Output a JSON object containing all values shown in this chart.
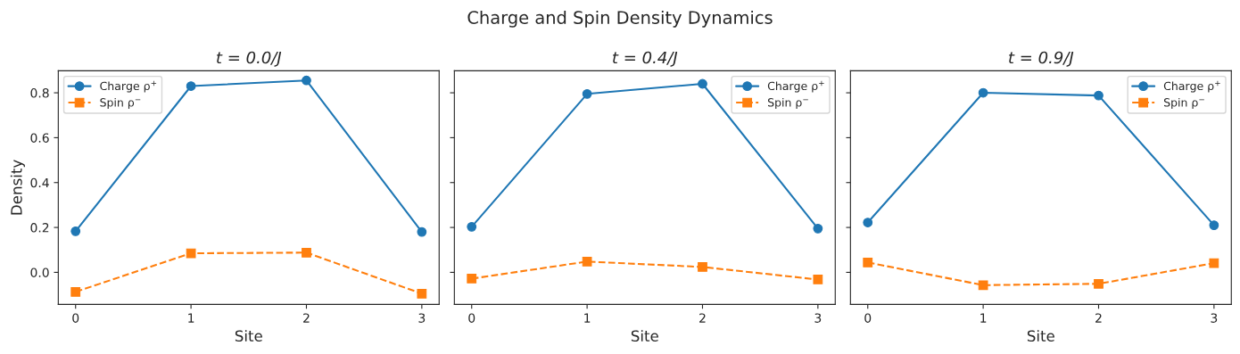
{
  "chart_data": [
    {
      "type": "line",
      "title": "t = 0.0/J",
      "annotations": [
        "Charge and Spin Density Dynamics"
      ],
      "xlabel": "Site",
      "ylabel": "Density",
      "x": [
        0,
        1,
        2,
        3
      ],
      "xlim": [
        -0.15,
        3.15
      ],
      "xticks": [
        0,
        1,
        2,
        3
      ],
      "ylim": [
        -0.143,
        0.898
      ],
      "yticks": [
        {
          "value": 0.0,
          "label": "0.0"
        },
        0.2,
        0.4,
        0.6,
        0.8
      ],
      "legend": "top left",
      "grid": false,
      "series": [
        {
          "name": "Charge ρ$^{+}$",
          "color": "#1f77b4",
          "marker": "circle",
          "line_style": "solid",
          "values": [
            0.183,
            0.83,
            0.855,
            0.18
          ]
        },
        {
          "name": "Spin ρ$^{−}$",
          "color": "#ff7f0e",
          "marker": "square",
          "line_style": "dashed",
          "values": [
            -0.087,
            0.085,
            0.088,
            -0.095
          ]
        }
      ]
    },
    {
      "type": "line",
      "title": "t = 0.4/J",
      "xlabel": "Site",
      "x": [
        0,
        1,
        2,
        3
      ],
      "xlim": [
        -0.15,
        3.15
      ],
      "xticks": [
        0,
        1,
        2,
        3
      ],
      "ylim": [
        -0.143,
        0.898
      ],
      "yticks": [
        {
          "value": 0.0,
          "label": null
        },
        {
          "value": 0.2,
          "label": null
        },
        {
          "value": 0.4,
          "label": null
        },
        {
          "value": 0.6,
          "label": null
        },
        {
          "value": 0.8,
          "label": null
        }
      ],
      "tick_labels": "x",
      "legend": "top right",
      "grid": false,
      "series": [
        {
          "name": "Charge ρ$^{+}$",
          "color": "#1f77b4",
          "marker": "circle",
          "line_style": "solid",
          "values": [
            0.203,
            0.795,
            0.84,
            0.195
          ]
        },
        {
          "name": "Spin ρ$^{−}$",
          "color": "#ff7f0e",
          "marker": "square",
          "line_style": "dashed",
          "values": [
            -0.028,
            0.048,
            0.024,
            -0.032
          ]
        }
      ]
    },
    {
      "type": "line",
      "title": "t = 0.9/J",
      "xlabel": "Site",
      "x": [
        0,
        1,
        2,
        3
      ],
      "xlim": [
        -0.15,
        3.15
      ],
      "xticks": [
        0,
        1,
        2,
        3
      ],
      "ylim": [
        -0.143,
        0.898
      ],
      "yticks": [
        {
          "value": 0.0,
          "label": null
        },
        {
          "value": 0.2,
          "label": null
        },
        {
          "value": 0.4,
          "label": null
        },
        {
          "value": 0.6,
          "label": null
        },
        {
          "value": 0.8,
          "label": null
        }
      ],
      "tick_labels": "x",
      "legend": "top right",
      "grid": false,
      "series": [
        {
          "name": "Charge ρ$^{+}$",
          "color": "#1f77b4",
          "marker": "circle",
          "line_style": "solid",
          "values": [
            0.222,
            0.8,
            0.788,
            0.21
          ]
        },
        {
          "name": "Spin ρ$^{−}$",
          "color": "#ff7f0e",
          "marker": "square",
          "line_style": "dashed",
          "values": [
            0.044,
            -0.057,
            -0.051,
            0.041
          ]
        }
      ]
    }
  ]
}
